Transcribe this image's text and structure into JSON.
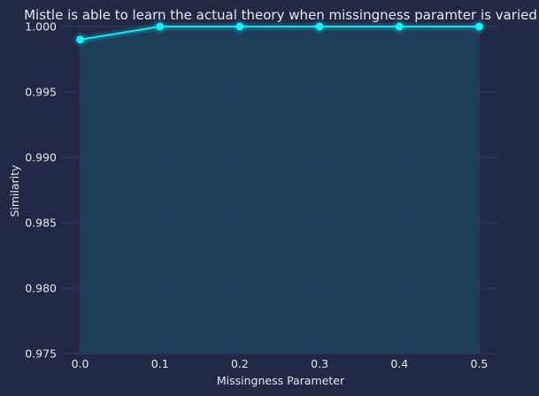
{
  "chart_data": {
    "type": "line",
    "title": "Mistle is able to learn the actual theory when missingness paramter is varied",
    "xlabel": "Missingness Parameter",
    "ylabel": "Similarity",
    "x": [
      0.0,
      0.1,
      0.2,
      0.3,
      0.4,
      0.5
    ],
    "x_tick_labels": [
      "0.0",
      "0.1",
      "0.2",
      "0.3",
      "0.4",
      "0.5"
    ],
    "y_ticks": [
      0.975,
      0.98,
      0.985,
      0.99,
      0.995,
      1.0
    ],
    "y_tick_labels": [
      "0.975",
      "0.980",
      "0.985",
      "0.990",
      "0.995",
      "1.000"
    ],
    "xlim": [
      -0.025,
      0.525
    ],
    "ylim": [
      0.975,
      1.0
    ],
    "grid": true,
    "fill_under": true,
    "series": [
      {
        "values": [
          0.999,
          1.0,
          1.0,
          1.0,
          1.0,
          1.0
        ],
        "color": "#08F7FE"
      }
    ],
    "colors": {
      "background": "#212946",
      "grid": "#2A3B5E",
      "text": "#E8E8EE",
      "line": "#08F7FE",
      "fill": "#1F4260"
    }
  }
}
